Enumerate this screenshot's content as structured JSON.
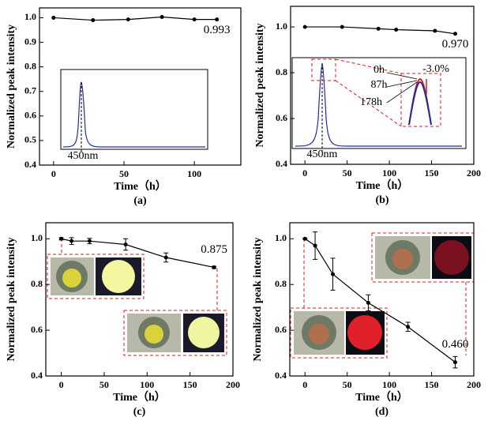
{
  "chart_data": [
    {
      "type": "line",
      "caption": "(a)",
      "x_label": "Time（h）",
      "y_label": "Normalized peak intensity",
      "x": [
        0,
        28,
        53,
        77,
        100,
        116
      ],
      "series": [
        {
          "color": "#000000",
          "values": [
            1.0,
            0.99,
            0.993,
            1.003,
            0.993,
            0.993
          ],
          "value_labels": [
            null,
            null,
            null,
            null,
            null,
            "0.993"
          ],
          "label_color": "#000000"
        }
      ],
      "xlim": [
        -10,
        133
      ],
      "ylim": [
        0.4,
        1.04
      ],
      "xticks": [
        0,
        50,
        100
      ],
      "yticks": [
        0.4,
        0.5,
        0.6,
        0.7,
        0.8,
        0.9,
        {
          "value": 1,
          "label": "1.0"
        }
      ],
      "annotations": [
        "450nm"
      ]
    },
    {
      "type": "line",
      "caption": "(b)",
      "x_label": "Time（h）",
      "y_label": "Normalized peak intensity",
      "x": [
        0,
        44,
        87,
        108,
        154,
        178
      ],
      "series": [
        {
          "color": "#000000",
          "values": [
            1.0,
            1.0,
            0.992,
            0.988,
            0.983,
            0.97
          ],
          "value_labels": [
            null,
            null,
            null,
            null,
            null,
            "0.970"
          ],
          "label_color": "#e41a1c"
        }
      ],
      "xlim": [
        -17,
        200
      ],
      "ylim": [
        0.4,
        1.09
      ],
      "xticks": [
        0,
        50,
        100,
        150,
        200
      ],
      "yticks": [
        0.4,
        0.6,
        0.8,
        {
          "value": 1,
          "label": "1.0"
        }
      ],
      "annotations": [
        "450nm",
        "0h",
        "87h",
        "178h",
        "-3.0%"
      ]
    },
    {
      "type": "line",
      "caption": "(c)",
      "x_label": "Time（h）",
      "y_label": "Normalized peak intensity",
      "x": [
        0,
        12,
        33,
        75,
        122,
        178
      ],
      "series": [
        {
          "color": "#000000",
          "values": [
            1.0,
            0.99,
            0.99,
            0.975,
            0.918,
            0.875
          ],
          "errors": [
            0.005,
            0.015,
            0.012,
            0.025,
            0.02,
            0.005
          ],
          "value_labels": [
            null,
            null,
            null,
            null,
            null,
            "0.875"
          ],
          "label_color": "#e41a1c"
        }
      ],
      "xlim": [
        -18,
        200
      ],
      "ylim": [
        0.4,
        1.07
      ],
      "xticks": [
        0,
        50,
        100,
        150,
        200
      ],
      "yticks": [
        0.4,
        0.6,
        0.8,
        {
          "value": 1,
          "label": "1.0"
        }
      ]
    },
    {
      "type": "line",
      "caption": "(d)",
      "x_label": "Time（h）",
      "y_label": "Normalized peak intensity",
      "x": [
        0,
        12,
        33,
        75,
        122,
        178
      ],
      "series": [
        {
          "color": "#000000",
          "values": [
            1.0,
            0.97,
            0.845,
            0.72,
            0.615,
            0.46
          ],
          "errors": [
            0.003,
            0.06,
            0.07,
            0.035,
            0.02,
            0.025
          ],
          "value_labels": [
            null,
            null,
            null,
            null,
            null,
            "0.460"
          ],
          "label_color": "#e41a1c"
        }
      ],
      "xlim": [
        -18,
        200
      ],
      "ylim": [
        0.4,
        1.07
      ],
      "xticks": [
        0,
        50,
        100,
        150,
        200
      ],
      "yticks": [
        0.4,
        0.6,
        0.8,
        {
          "value": 1,
          "label": "1.0"
        }
      ]
    }
  ]
}
